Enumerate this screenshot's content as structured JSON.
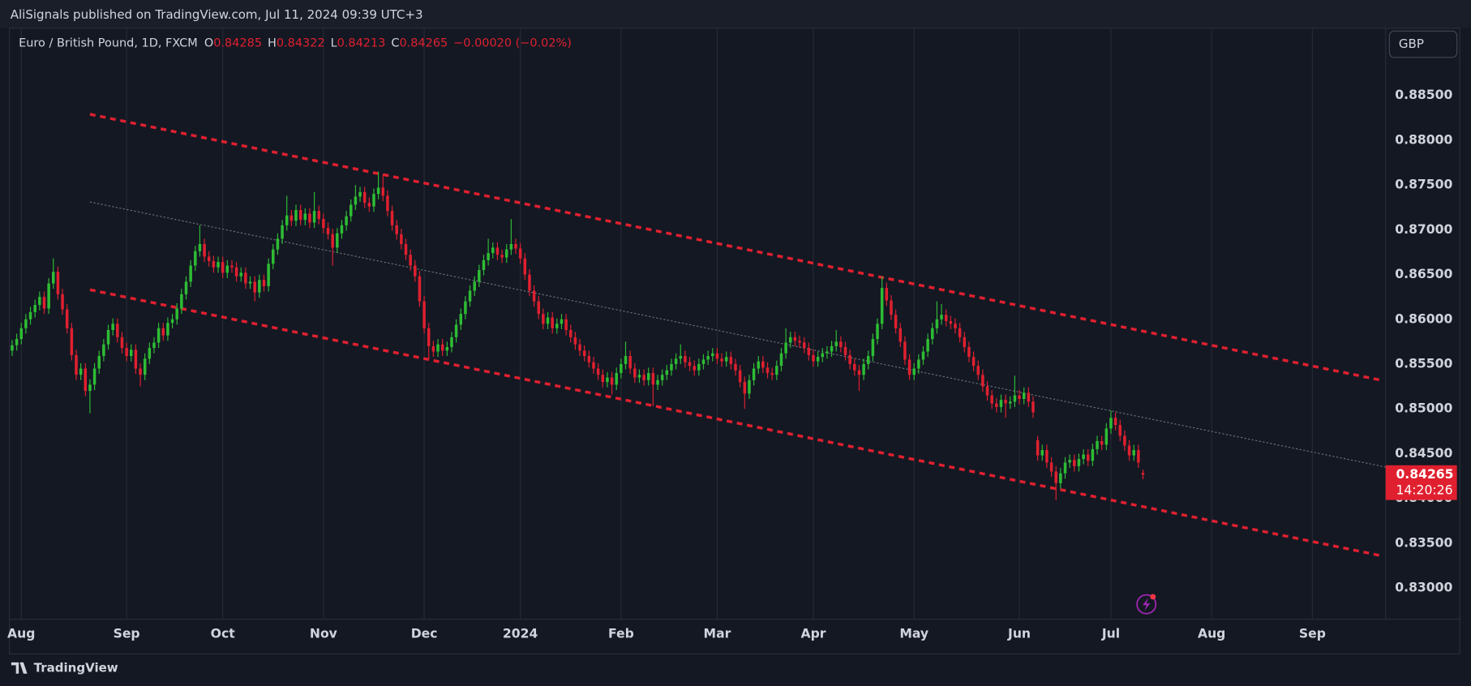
{
  "page": {
    "published": "AliSignals published on TradingView.com, Jul 11, 2024 09:39 UTC+3",
    "brand": "TradingView"
  },
  "chart_data": {
    "type": "candlestick",
    "symbol": "Euro / British Pound, 1D, FXCM",
    "ohlc_labels": [
      "O",
      "H",
      "L",
      "C"
    ],
    "change": "−0.00020 (−0.02%)",
    "currency": "GBP",
    "countdown": "14:20:26",
    "up_color": "#2ebd34",
    "down_color": "#e0202f",
    "xlim": [
      -0.6,
      300
    ],
    "xticks": [
      {
        "value": 2,
        "label": "Aug"
      },
      {
        "value": 25,
        "label": "Sep"
      },
      {
        "value": 46,
        "label": "Oct"
      },
      {
        "value": 68,
        "label": "Nov"
      },
      {
        "value": 90,
        "label": "Dec"
      },
      {
        "value": 111,
        "label": "2024"
      },
      {
        "value": 133,
        "label": "Feb"
      },
      {
        "value": 154,
        "label": "Mar"
      },
      {
        "value": 175,
        "label": "Apr"
      },
      {
        "value": 197,
        "label": "May"
      },
      {
        "value": 220,
        "label": "Jun"
      },
      {
        "value": 240,
        "label": "Jul"
      },
      {
        "value": 262,
        "label": "Aug"
      },
      {
        "value": 284,
        "label": "Sep"
      }
    ],
    "ylim": [
      0.8265,
      0.8925
    ],
    "yticks": [
      {
        "value": 0.83,
        "label": "0.83000"
      },
      {
        "value": 0.835,
        "label": "0.83500"
      },
      {
        "value": 0.84,
        "label": "0.84000"
      },
      {
        "value": 0.845,
        "label": "0.84500"
      },
      {
        "value": 0.85,
        "label": "0.85000"
      },
      {
        "value": 0.855,
        "label": "0.85500"
      },
      {
        "value": 0.86,
        "label": "0.86000"
      },
      {
        "value": 0.865,
        "label": "0.86500"
      },
      {
        "value": 0.87,
        "label": "0.87000"
      },
      {
        "value": 0.875,
        "label": "0.87500"
      },
      {
        "value": 0.88,
        "label": "0.88000"
      },
      {
        "value": 0.885,
        "label": "0.88500"
      }
    ],
    "grid": true,
    "lines": [
      {
        "x": [
          17,
          299
        ],
        "y": [
          0.8829,
          0.8532
        ],
        "color": "#e0202f",
        "dash": "6 5",
        "width": 3
      },
      {
        "x": [
          17,
          299
        ],
        "y": [
          0.8633,
          0.8336
        ],
        "color": "#e0202f",
        "dash": "6 5",
        "width": 3
      },
      {
        "x": [
          17,
          300
        ],
        "y": [
          0.8731,
          0.8435
        ],
        "color": "#6b6f7a",
        "dash": "2 2",
        "width": 1
      }
    ],
    "open": [
      0.8565,
      0.8571,
      0.8578,
      0.859,
      0.86,
      0.8608,
      0.8616,
      0.8625,
      0.8612,
      0.864,
      0.8653,
      0.8628,
      0.8611,
      0.859,
      0.856,
      0.8538,
      0.8545,
      0.852,
      0.8527,
      0.8545,
      0.8559,
      0.8572,
      0.8588,
      0.8595,
      0.858,
      0.8568,
      0.8559,
      0.8566,
      0.8545,
      0.8538,
      0.8556,
      0.8568,
      0.8574,
      0.859,
      0.8582,
      0.8596,
      0.86,
      0.8612,
      0.8628,
      0.8642,
      0.866,
      0.8676,
      0.8684,
      0.867,
      0.8665,
      0.8658,
      0.8664,
      0.8652,
      0.866,
      0.8658,
      0.8648,
      0.8652,
      0.864,
      0.8642,
      0.863,
      0.8644,
      0.8637,
      0.8662,
      0.8678,
      0.869,
      0.8705,
      0.8716,
      0.871,
      0.8722,
      0.8711,
      0.8718,
      0.8708,
      0.8721,
      0.8712,
      0.8702,
      0.8695,
      0.868,
      0.8696,
      0.8705,
      0.8715,
      0.8728,
      0.8737,
      0.8742,
      0.873,
      0.8726,
      0.874,
      0.8747,
      0.8738,
      0.8721,
      0.8705,
      0.8695,
      0.8684,
      0.8672,
      0.866,
      0.8648,
      0.862,
      0.859,
      0.857,
      0.8564,
      0.8572,
      0.8565,
      0.8569,
      0.858,
      0.8594,
      0.8606,
      0.862,
      0.8632,
      0.8642,
      0.8655,
      0.8666,
      0.8674,
      0.868,
      0.8672,
      0.8669,
      0.8678,
      0.8684,
      0.8679,
      0.8668,
      0.865,
      0.8632,
      0.862,
      0.8606,
      0.8595,
      0.8602,
      0.859,
      0.8595,
      0.86,
      0.8588,
      0.858,
      0.8572,
      0.8565,
      0.8559,
      0.8552,
      0.8545,
      0.8538,
      0.853,
      0.8535,
      0.8527,
      0.854,
      0.855,
      0.8559,
      0.8545,
      0.8535,
      0.8538,
      0.8532,
      0.854,
      0.8527,
      0.8532,
      0.8538,
      0.8543,
      0.855,
      0.8556,
      0.8559,
      0.8552,
      0.8548,
      0.8543,
      0.855,
      0.8555,
      0.8559,
      0.8562,
      0.8556,
      0.8553,
      0.8558,
      0.855,
      0.8543,
      0.853,
      0.8517,
      0.8532,
      0.8545,
      0.8553,
      0.8546,
      0.854,
      0.8538,
      0.8548,
      0.8562,
      0.8574,
      0.858,
      0.8576,
      0.8574,
      0.8568,
      0.856,
      0.8553,
      0.8558,
      0.8562,
      0.8564,
      0.857,
      0.8575,
      0.8569,
      0.856,
      0.855,
      0.8543,
      0.8538,
      0.855,
      0.8559,
      0.8578,
      0.8595,
      0.8635,
      0.8621,
      0.8605,
      0.859,
      0.8575,
      0.8555,
      0.8538,
      0.8545,
      0.8555,
      0.8564,
      0.8578,
      0.859,
      0.86,
      0.8605,
      0.8598,
      0.8595,
      0.859,
      0.858,
      0.8569,
      0.8558,
      0.8548,
      0.8538,
      0.8525,
      0.8515,
      0.8506,
      0.8502,
      0.851,
      0.8506,
      0.8508,
      0.8515,
      0.8511,
      0.8518,
      0.8508,
      0.8465,
      0.8448,
      0.8454,
      0.844,
      0.843,
      0.8417,
      0.8428,
      0.844,
      0.8443,
      0.8436,
      0.8444,
      0.8449,
      0.8442,
      0.8455,
      0.8464,
      0.846,
      0.8478,
      0.849,
      0.8482,
      0.847,
      0.8459,
      0.8448,
      0.8454,
      0.84285
    ],
    "high": [
      0.8577,
      0.8584,
      0.8596,
      0.8606,
      0.8614,
      0.8622,
      0.8631,
      0.8631,
      0.8646,
      0.8668,
      0.8659,
      0.8634,
      0.8617,
      0.8596,
      0.8566,
      0.8551,
      0.8551,
      0.8533,
      0.8551,
      0.8565,
      0.8578,
      0.8594,
      0.8601,
      0.8601,
      0.8586,
      0.8574,
      0.8572,
      0.8572,
      0.8551,
      0.8562,
      0.8574,
      0.858,
      0.8596,
      0.8596,
      0.8602,
      0.8606,
      0.8618,
      0.8634,
      0.8648,
      0.8666,
      0.8682,
      0.8705,
      0.869,
      0.8676,
      0.8671,
      0.867,
      0.867,
      0.8666,
      0.8666,
      0.8664,
      0.8658,
      0.8658,
      0.8648,
      0.8648,
      0.865,
      0.865,
      0.8668,
      0.8684,
      0.8696,
      0.8711,
      0.8738,
      0.8722,
      0.8728,
      0.8728,
      0.8724,
      0.8724,
      0.8742,
      0.8727,
      0.8718,
      0.8708,
      0.8701,
      0.8702,
      0.8711,
      0.8721,
      0.8734,
      0.875,
      0.8748,
      0.8748,
      0.8736,
      0.8746,
      0.8765,
      0.8762,
      0.8744,
      0.8727,
      0.8711,
      0.8701,
      0.869,
      0.8678,
      0.8666,
      0.8654,
      0.8626,
      0.8596,
      0.8576,
      0.8578,
      0.8578,
      0.8575,
      0.8586,
      0.86,
      0.8612,
      0.8626,
      0.8638,
      0.8648,
      0.8661,
      0.8672,
      0.869,
      0.8686,
      0.8686,
      0.8678,
      0.8684,
      0.8712,
      0.869,
      0.8685,
      0.8674,
      0.8656,
      0.8638,
      0.8626,
      0.8612,
      0.8608,
      0.8608,
      0.8601,
      0.8606,
      0.8606,
      0.8594,
      0.8586,
      0.8578,
      0.8571,
      0.8565,
      0.8558,
      0.8551,
      0.8544,
      0.8541,
      0.8541,
      0.8546,
      0.8556,
      0.8575,
      0.8565,
      0.8551,
      0.8544,
      0.8544,
      0.8546,
      0.8546,
      0.8538,
      0.8544,
      0.8549,
      0.8556,
      0.8562,
      0.8572,
      0.8565,
      0.8558,
      0.8554,
      0.8556,
      0.8561,
      0.8565,
      0.8568,
      0.8568,
      0.8562,
      0.8564,
      0.8564,
      0.8556,
      0.8549,
      0.8536,
      0.8538,
      0.8551,
      0.8559,
      0.8559,
      0.8552,
      0.8546,
      0.8554,
      0.8568,
      0.859,
      0.8586,
      0.8586,
      0.8582,
      0.858,
      0.8574,
      0.8566,
      0.8564,
      0.8568,
      0.857,
      0.8576,
      0.8588,
      0.8581,
      0.8575,
      0.8566,
      0.8556,
      0.8549,
      0.8556,
      0.8565,
      0.8584,
      0.8601,
      0.8648,
      0.8641,
      0.8627,
      0.8611,
      0.8596,
      0.8581,
      0.8561,
      0.8551,
      0.8561,
      0.857,
      0.8584,
      0.8596,
      0.862,
      0.8617,
      0.8611,
      0.8604,
      0.8601,
      0.8596,
      0.8586,
      0.8575,
      0.8564,
      0.8554,
      0.8544,
      0.8531,
      0.8521,
      0.8512,
      0.8516,
      0.8516,
      0.8514,
      0.8537,
      0.8521,
      0.8524,
      0.8524,
      0.8514,
      0.847,
      0.846,
      0.846,
      0.8446,
      0.8436,
      0.8434,
      0.8446,
      0.8449,
      0.8449,
      0.845,
      0.8455,
      0.8455,
      0.8461,
      0.847,
      0.847,
      0.8484,
      0.8498,
      0.8496,
      0.8488,
      0.8476,
      0.8465,
      0.846,
      0.846,
      0.84322
    ],
    "low": [
      0.8559,
      0.8565,
      0.8572,
      0.8584,
      0.8594,
      0.8602,
      0.861,
      0.8606,
      0.8606,
      0.8634,
      0.8622,
      0.8605,
      0.8584,
      0.8554,
      0.8532,
      0.8532,
      0.8514,
      0.8495,
      0.8521,
      0.8539,
      0.8553,
      0.8566,
      0.8582,
      0.8574,
      0.8562,
      0.8553,
      0.8553,
      0.8539,
      0.8525,
      0.8532,
      0.855,
      0.8562,
      0.8568,
      0.8576,
      0.8576,
      0.859,
      0.8594,
      0.8606,
      0.8622,
      0.8636,
      0.8654,
      0.867,
      0.8664,
      0.8659,
      0.8652,
      0.8652,
      0.8646,
      0.8646,
      0.8652,
      0.8642,
      0.8642,
      0.8634,
      0.8634,
      0.862,
      0.8624,
      0.8631,
      0.8631,
      0.8656,
      0.8672,
      0.8684,
      0.8699,
      0.8704,
      0.8704,
      0.8705,
      0.8705,
      0.8702,
      0.8702,
      0.8706,
      0.8696,
      0.8689,
      0.866,
      0.8674,
      0.869,
      0.8699,
      0.8709,
      0.8722,
      0.8731,
      0.8724,
      0.872,
      0.872,
      0.8734,
      0.8732,
      0.8715,
      0.8699,
      0.8689,
      0.8678,
      0.8666,
      0.8654,
      0.8642,
      0.8614,
      0.8584,
      0.8556,
      0.8558,
      0.8558,
      0.8559,
      0.8559,
      0.8563,
      0.8574,
      0.8588,
      0.86,
      0.8614,
      0.8626,
      0.8636,
      0.8649,
      0.866,
      0.8668,
      0.8666,
      0.8663,
      0.8663,
      0.8672,
      0.8673,
      0.8662,
      0.8644,
      0.8626,
      0.8614,
      0.86,
      0.8589,
      0.8589,
      0.8584,
      0.8584,
      0.8589,
      0.8582,
      0.8574,
      0.8566,
      0.8559,
      0.8553,
      0.8546,
      0.8539,
      0.8532,
      0.8524,
      0.8524,
      0.8516,
      0.8521,
      0.8534,
      0.8544,
      0.8539,
      0.8529,
      0.8529,
      0.8526,
      0.8526,
      0.8503,
      0.8521,
      0.8526,
      0.8532,
      0.8537,
      0.8544,
      0.855,
      0.8546,
      0.8542,
      0.8537,
      0.8537,
      0.8544,
      0.8549,
      0.8553,
      0.855,
      0.8547,
      0.8547,
      0.8544,
      0.8537,
      0.8524,
      0.85,
      0.8511,
      0.8526,
      0.8539,
      0.854,
      0.8534,
      0.8532,
      0.8532,
      0.8542,
      0.8556,
      0.8568,
      0.857,
      0.8568,
      0.8562,
      0.8554,
      0.8547,
      0.8547,
      0.8552,
      0.8556,
      0.8558,
      0.8564,
      0.8563,
      0.8554,
      0.8544,
      0.8537,
      0.852,
      0.8532,
      0.8544,
      0.8553,
      0.8572,
      0.8589,
      0.8615,
      0.8599,
      0.8584,
      0.8569,
      0.8549,
      0.8532,
      0.8532,
      0.8539,
      0.8549,
      0.8558,
      0.8572,
      0.8584,
      0.8594,
      0.8592,
      0.8589,
      0.8584,
      0.8574,
      0.8563,
      0.8552,
      0.8542,
      0.8532,
      0.8519,
      0.8509,
      0.85,
      0.8496,
      0.8496,
      0.849,
      0.85,
      0.8502,
      0.8505,
      0.8505,
      0.8502,
      0.849,
      0.8442,
      0.8442,
      0.8434,
      0.8424,
      0.8398,
      0.8411,
      0.8422,
      0.8434,
      0.843,
      0.843,
      0.8438,
      0.8436,
      0.8436,
      0.8449,
      0.8454,
      0.8454,
      0.8472,
      0.8476,
      0.8464,
      0.8453,
      0.8442,
      0.8442,
      0.8434,
      0.84213
    ],
    "close": [
      0.8571,
      0.8578,
      0.859,
      0.86,
      0.8608,
      0.8616,
      0.8625,
      0.8612,
      0.864,
      0.8653,
      0.8628,
      0.8611,
      0.859,
      0.856,
      0.8538,
      0.8545,
      0.852,
      0.8527,
      0.8545,
      0.8559,
      0.8572,
      0.8588,
      0.8595,
      0.858,
      0.8568,
      0.8559,
      0.8566,
      0.8545,
      0.8538,
      0.8556,
      0.8568,
      0.8574,
      0.859,
      0.8582,
      0.8596,
      0.86,
      0.8612,
      0.8628,
      0.8642,
      0.866,
      0.8676,
      0.8684,
      0.867,
      0.8665,
      0.8658,
      0.8664,
      0.8652,
      0.866,
      0.8658,
      0.8648,
      0.8652,
      0.864,
      0.8642,
      0.863,
      0.8644,
      0.8637,
      0.8662,
      0.8678,
      0.869,
      0.8705,
      0.8716,
      0.871,
      0.8722,
      0.8711,
      0.8718,
      0.8708,
      0.8721,
      0.8712,
      0.8702,
      0.8695,
      0.868,
      0.8696,
      0.8705,
      0.8715,
      0.8728,
      0.8737,
      0.8742,
      0.873,
      0.8726,
      0.874,
      0.8747,
      0.8738,
      0.8721,
      0.8705,
      0.8695,
      0.8684,
      0.8672,
      0.866,
      0.8648,
      0.862,
      0.859,
      0.857,
      0.8564,
      0.8572,
      0.8565,
      0.8569,
      0.858,
      0.8594,
      0.8606,
      0.862,
      0.8632,
      0.8642,
      0.8655,
      0.8666,
      0.8674,
      0.868,
      0.8672,
      0.8669,
      0.8678,
      0.8684,
      0.8679,
      0.8668,
      0.865,
      0.8632,
      0.862,
      0.8606,
      0.8595,
      0.8602,
      0.859,
      0.8595,
      0.86,
      0.8588,
      0.858,
      0.8572,
      0.8565,
      0.8559,
      0.8552,
      0.8545,
      0.8538,
      0.853,
      0.8535,
      0.8527,
      0.854,
      0.855,
      0.8559,
      0.8545,
      0.8535,
      0.8538,
      0.8532,
      0.854,
      0.8527,
      0.8532,
      0.8538,
      0.8543,
      0.855,
      0.8556,
      0.8559,
      0.8552,
      0.8548,
      0.8543,
      0.855,
      0.8555,
      0.8559,
      0.8562,
      0.8556,
      0.8553,
      0.8558,
      0.855,
      0.8543,
      0.853,
      0.8517,
      0.8532,
      0.8545,
      0.8553,
      0.8546,
      0.854,
      0.8538,
      0.8548,
      0.8562,
      0.8574,
      0.858,
      0.8576,
      0.8574,
      0.8568,
      0.856,
      0.8553,
      0.8558,
      0.8562,
      0.8564,
      0.857,
      0.8575,
      0.8569,
      0.856,
      0.855,
      0.8543,
      0.8538,
      0.855,
      0.8559,
      0.8578,
      0.8595,
      0.8635,
      0.8621,
      0.8605,
      0.859,
      0.8575,
      0.8555,
      0.8538,
      0.8545,
      0.8555,
      0.8564,
      0.8578,
      0.859,
      0.86,
      0.8605,
      0.8598,
      0.8595,
      0.859,
      0.858,
      0.8569,
      0.8558,
      0.8548,
      0.8538,
      0.8525,
      0.8515,
      0.8506,
      0.8502,
      0.851,
      0.8506,
      0.8508,
      0.8515,
      0.8511,
      0.8518,
      0.8508,
      0.8496,
      0.8448,
      0.8454,
      0.844,
      0.843,
      0.8417,
      0.8428,
      0.844,
      0.8443,
      0.8436,
      0.8444,
      0.8449,
      0.8442,
      0.8455,
      0.8464,
      0.846,
      0.8478,
      0.849,
      0.8482,
      0.847,
      0.8459,
      0.8448,
      0.8454,
      0.844,
      0.84265
    ]
  }
}
